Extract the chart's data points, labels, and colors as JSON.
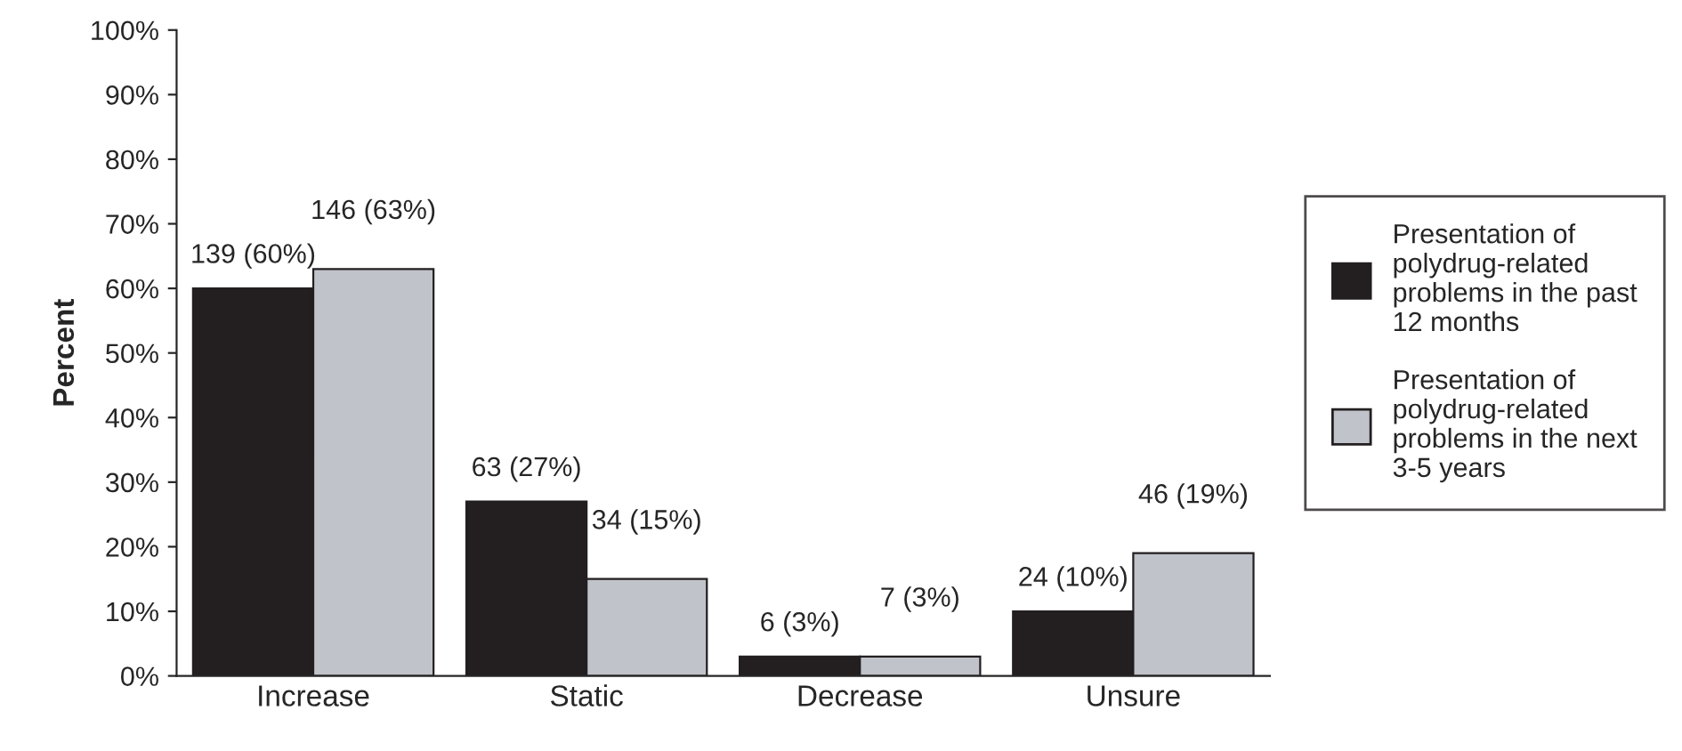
{
  "chart_data": {
    "type": "bar",
    "ylabel": "Percent",
    "categories": [
      "Increase",
      "Static",
      "Decrease",
      "Unsure"
    ],
    "series": [
      {
        "name": "Presentation of\npolydrug-related\nproblems in the past\n12 months",
        "color": "#231f20",
        "values": [
          60,
          27,
          3,
          10
        ],
        "value_labels": [
          "139 (60%)",
          "63 (27%)",
          "6 (3%)",
          "24 (10%)"
        ]
      },
      {
        "name": "Presentation of\npolydrug-related\nproblems in the next\n3-5 years",
        "color": "#c0c3c9",
        "values": [
          63,
          15,
          3,
          19
        ],
        "value_labels": [
          "146 (63%)",
          "34 (15%)",
          "7 (3%)",
          "46 (19%)"
        ]
      }
    ],
    "ylim": [
      0,
      100
    ],
    "yticks": [
      {
        "value": 0,
        "label": "0%"
      },
      {
        "value": 10,
        "label": "10%"
      },
      {
        "value": 20,
        "label": "20%"
      },
      {
        "value": 30,
        "label": "30%"
      },
      {
        "value": 40,
        "label": "40%"
      },
      {
        "value": 50,
        "label": "50%"
      },
      {
        "value": 60,
        "label": "60%"
      },
      {
        "value": 70,
        "label": "70%"
      },
      {
        "value": 80,
        "label": "80%"
      },
      {
        "value": 90,
        "label": "90%"
      },
      {
        "value": 100,
        "label": "100%"
      }
    ],
    "grid": false,
    "legend": "right"
  }
}
